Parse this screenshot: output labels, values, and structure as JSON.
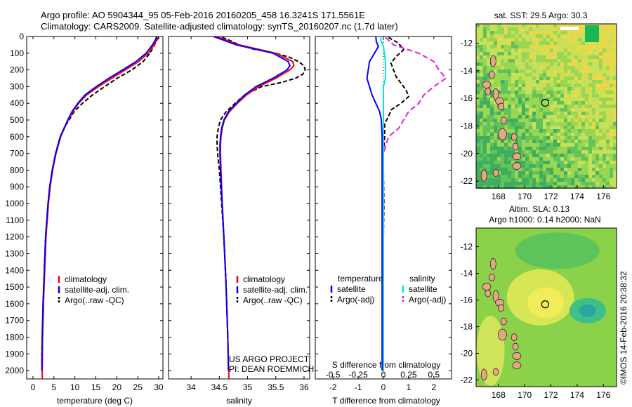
{
  "title_line1": "Argo profile: AO 5904344_95 05-Feb-2016 20160205_458 16.3241S 171.5561E",
  "title_line2": "Climatology: CARS2009. Satellite-adjusted climatology: synTS_20160207.nc (1.7d later)",
  "depth_ticks": [
    "0",
    "100",
    "200",
    "300",
    "400",
    "500",
    "600",
    "700",
    "800",
    "900",
    "1000",
    "1100",
    "1200",
    "1300",
    "1400",
    "1500",
    "1600",
    "1700",
    "1800",
    "1900",
    "2000"
  ],
  "colors": {
    "climatology": "#ff0000",
    "satellite": "#0000ff",
    "argo": "#000000",
    "sal_sat": "#00e5e5",
    "sal_argo": "#e020e0"
  },
  "chart_data": [
    {
      "type": "line",
      "id": "temperature",
      "xlabel": "temperature (deg C)",
      "xlim": [
        -1.5,
        31
      ],
      "ylim": [
        2050,
        0
      ],
      "xticks": [
        "0",
        "5",
        "10",
        "15",
        "20",
        "25",
        "30"
      ],
      "legend": [
        "climatology",
        "satellite-adj. clim.",
        "Argo(..raw -QC)"
      ],
      "series": [
        {
          "name": "climatology",
          "depth": [
            0,
            20,
            50,
            100,
            150,
            200,
            250,
            300,
            350,
            400,
            450,
            500,
            550,
            600,
            700,
            800,
            900,
            1000,
            1200,
            1400,
            1600,
            1800,
            2050
          ],
          "values": [
            29.8,
            29.5,
            28.9,
            27.5,
            25.2,
            22.0,
            18.8,
            15.6,
            12.8,
            10.9,
            9.5,
            8.4,
            7.5,
            6.6,
            5.5,
            4.7,
            4.1,
            3.7,
            3.1,
            2.8,
            2.5,
            2.3,
            2.2
          ]
        },
        {
          "name": "satellite-adj. clim.",
          "depth": [
            0,
            20,
            50,
            100,
            150,
            200,
            250,
            300,
            350,
            400,
            450,
            500,
            550,
            600,
            700,
            800,
            900,
            1000,
            1200,
            1400,
            1600,
            1800,
            2000
          ],
          "values": [
            29.5,
            29.2,
            28.5,
            27.0,
            24.6,
            21.4,
            18.1,
            15.1,
            12.4,
            10.7,
            9.3,
            8.3,
            7.4,
            6.5,
            5.4,
            4.6,
            4.0,
            3.6,
            3.0,
            2.7,
            2.4,
            2.2,
            2.1
          ]
        },
        {
          "name": "Argo(..raw -QC)",
          "depth": [
            5,
            20,
            50,
            100,
            150,
            200,
            250,
            300,
            350,
            400,
            450,
            500,
            550,
            600,
            700,
            800,
            900,
            1000,
            1200,
            1400,
            1600,
            1800,
            1950
          ],
          "values": [
            29.9,
            29.6,
            29.0,
            27.9,
            26.3,
            23.6,
            20.1,
            17.1,
            14.2,
            11.8,
            9.8,
            8.6,
            7.4,
            6.5,
            5.4,
            4.6,
            4.0,
            3.6,
            3.0,
            2.7,
            2.4,
            2.2,
            2.1
          ]
        }
      ]
    },
    {
      "type": "line",
      "id": "salinity",
      "xlabel": "salinity",
      "xlim": [
        33.6,
        36.1
      ],
      "ylim": [
        2050,
        0
      ],
      "xticks": [
        "34",
        "34.5",
        "35",
        "35.5",
        "36"
      ],
      "legend": [
        "climatology",
        "satellite-adj. clim.",
        "Argo(..raw -QC)"
      ],
      "annotation": [
        "US ARGO PROJECT",
        "PI: DEAN ROEMMICH"
      ],
      "series": [
        {
          "name": "climatology",
          "depth": [
            0,
            50,
            100,
            150,
            175,
            200,
            250,
            300,
            350,
            400,
            450,
            500,
            550,
            600,
            650,
            700,
            800,
            1000,
            1200,
            1500,
            1800,
            2050
          ],
          "values": [
            34.45,
            34.85,
            35.5,
            35.8,
            35.82,
            35.75,
            35.5,
            35.2,
            34.98,
            34.82,
            34.68,
            34.59,
            34.55,
            34.53,
            34.52,
            34.52,
            34.53,
            34.55,
            34.58,
            34.62,
            34.65,
            34.67
          ]
        },
        {
          "name": "satellite-adj. clim.",
          "depth": [
            0,
            50,
            100,
            150,
            175,
            200,
            250,
            300,
            350,
            400,
            450,
            500,
            550,
            600,
            650,
            700,
            800,
            1000,
            1200,
            1500,
            1800,
            2000
          ],
          "values": [
            34.4,
            34.8,
            35.45,
            35.72,
            35.75,
            35.7,
            35.45,
            35.15,
            34.95,
            34.8,
            34.66,
            34.58,
            34.54,
            34.52,
            34.51,
            34.51,
            34.52,
            34.55,
            34.58,
            34.62,
            34.65,
            34.66
          ]
        },
        {
          "name": "Argo(..raw -QC)",
          "depth": [
            5,
            25,
            50,
            75,
            100,
            125,
            150,
            175,
            200,
            225,
            250,
            275,
            300,
            350,
            400,
            450,
            500,
            550,
            600,
            650,
            700,
            800,
            900,
            1000,
            1200,
            1400,
            1600,
            1800,
            1950
          ],
          "values": [
            34.55,
            34.7,
            34.85,
            35.1,
            35.5,
            35.75,
            35.9,
            36.0,
            36.02,
            35.98,
            35.85,
            35.6,
            35.25,
            34.95,
            34.78,
            34.62,
            34.52,
            34.48,
            34.46,
            34.46,
            34.47,
            34.5,
            34.52,
            34.54,
            34.58,
            34.61,
            34.63,
            34.65,
            34.66
          ]
        }
      ]
    },
    {
      "type": "line",
      "id": "difference",
      "xlabel_bottom": "T difference from climatology",
      "xlabel_top": "S difference from climatology",
      "xlim": [
        -2.7,
        2.7
      ],
      "ylim": [
        2050,
        0
      ],
      "xticks_T": [
        "-2",
        "-1",
        "0",
        "1",
        "2"
      ],
      "xticks_S": [
        "-0.5",
        "-0.25",
        "0",
        "0.25",
        "0.5"
      ],
      "legend_temperature": [
        "temperature",
        "satellite",
        "Argo(-adj)"
      ],
      "legend_salinity": [
        "salinity",
        "satellite",
        "Argo(-adj)"
      ],
      "series": [
        {
          "name": "temperature satellite",
          "depth": [
            0,
            30,
            60,
            100,
            150,
            200,
            250,
            300,
            350,
            400,
            450,
            500,
            600,
            700,
            800,
            1000,
            1200,
            1500,
            1800,
            2000
          ],
          "values": [
            -0.3,
            -0.28,
            -0.2,
            -0.35,
            -0.55,
            -0.6,
            -0.65,
            -0.55,
            -0.45,
            -0.3,
            -0.15,
            -0.08,
            -0.05,
            -0.05,
            -0.05,
            -0.05,
            -0.05,
            -0.05,
            -0.05,
            -0.05
          ]
        },
        {
          "name": "temperature Argo(-adj)",
          "depth": [
            5,
            40,
            80,
            120,
            160,
            200,
            240,
            280,
            320,
            360,
            400,
            440,
            480,
            520,
            560,
            600,
            700,
            800,
            1000,
            1200,
            1500,
            1800,
            1950
          ],
          "values": [
            0.2,
            0.6,
            0.8,
            0.5,
            0.3,
            0.4,
            0.5,
            0.7,
            0.9,
            1.0,
            0.7,
            0.3,
            0.2,
            0.05,
            0.05,
            0.05,
            0.0,
            0.0,
            0.02,
            0.0,
            0.0,
            0.0,
            0.0
          ]
        },
        {
          "name": "salinity satellite",
          "depth": [
            0,
            30,
            60,
            100,
            150,
            200,
            250,
            300,
            400,
            500,
            600,
            800,
            1000,
            1500,
            2000
          ],
          "values": [
            -0.03,
            -0.02,
            0.0,
            0.01,
            0.02,
            0.02,
            0.02,
            0.0,
            0.0,
            0.0,
            0.0,
            0.0,
            0.0,
            0.0,
            0.0
          ]
        },
        {
          "name": "salinity Argo(-adj)",
          "depth": [
            5,
            50,
            100,
            150,
            200,
            250,
            300,
            350,
            400,
            450,
            500,
            550,
            600,
            700,
            800,
            1000,
            1200,
            1400,
            1600,
            1800,
            1950
          ],
          "values": [
            0.02,
            0.1,
            0.35,
            0.5,
            0.55,
            0.62,
            0.5,
            0.4,
            0.35,
            0.25,
            0.2,
            0.15,
            0.05,
            0.0,
            0.0,
            -0.01,
            -0.01,
            -0.01,
            -0.01,
            -0.01,
            -0.01
          ]
        }
      ]
    },
    {
      "type": "heatmap",
      "id": "sst-map",
      "title": "sat. SST: 29.5  Argo: 30.3",
      "lat_ticks": [
        "-12",
        "-14",
        "-16",
        "-18",
        "-20",
        "-22"
      ],
      "lon_ticks": [
        "168",
        "170",
        "172",
        "174",
        "176"
      ],
      "argo_position": {
        "lon": 171.56,
        "lat": -16.32
      }
    },
    {
      "type": "heatmap",
      "id": "sla-map",
      "title_line1": "Altim. SLA: 0.13",
      "title_line2": "Argo h1000: 0.14  h2000: NaN",
      "lat_ticks": [
        "-12",
        "-14",
        "-16",
        "-18",
        "-20",
        "-22"
      ],
      "lon_ticks": [
        "168",
        "170",
        "172",
        "174",
        "176"
      ],
      "argo_position": {
        "lon": 171.56,
        "lat": -16.32
      }
    }
  ],
  "footer_stamp": "©IMOS 14-Feb-2016 20:38:32"
}
